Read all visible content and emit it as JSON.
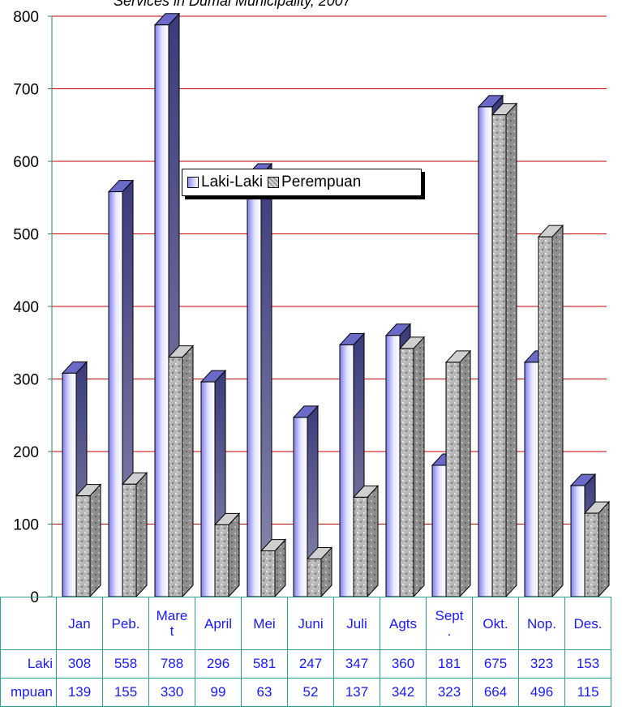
{
  "chart_data": {
    "type": "bar",
    "title": "Services in Dumai Municipality, 2007",
    "categories": [
      "Jan",
      "Peb.",
      "Maret",
      "April",
      "Mei",
      "Juni",
      "Juli",
      "Agts",
      "Sept.",
      "Okt.",
      "Nop.",
      "Des."
    ],
    "category_labels": [
      "Jan",
      "Peb.",
      "Mare\nt",
      "April",
      "Mei",
      "Juni",
      "Juli",
      "Agts",
      "Sept\n.",
      "Okt.",
      "Nop.",
      "Des."
    ],
    "series": [
      {
        "name": "Laki-Laki",
        "row_label": "Laki",
        "values": [
          308,
          558,
          788,
          296,
          581,
          247,
          347,
          360,
          181,
          675,
          323,
          153
        ]
      },
      {
        "name": "Perempuan",
        "row_label": "mpuan",
        "values": [
          139,
          155,
          330,
          99,
          63,
          52,
          137,
          342,
          323,
          664,
          496,
          115
        ]
      }
    ],
    "yticks": [
      "0",
      "100",
      "200",
      "300",
      "400",
      "500",
      "600",
      "700",
      "800"
    ],
    "ylim": [
      0,
      800
    ],
    "grid": true,
    "gridline_color": "#cc0000",
    "legend": [
      "Laki-Laki",
      "Perempuan"
    ],
    "legend_placement": "top-center"
  }
}
